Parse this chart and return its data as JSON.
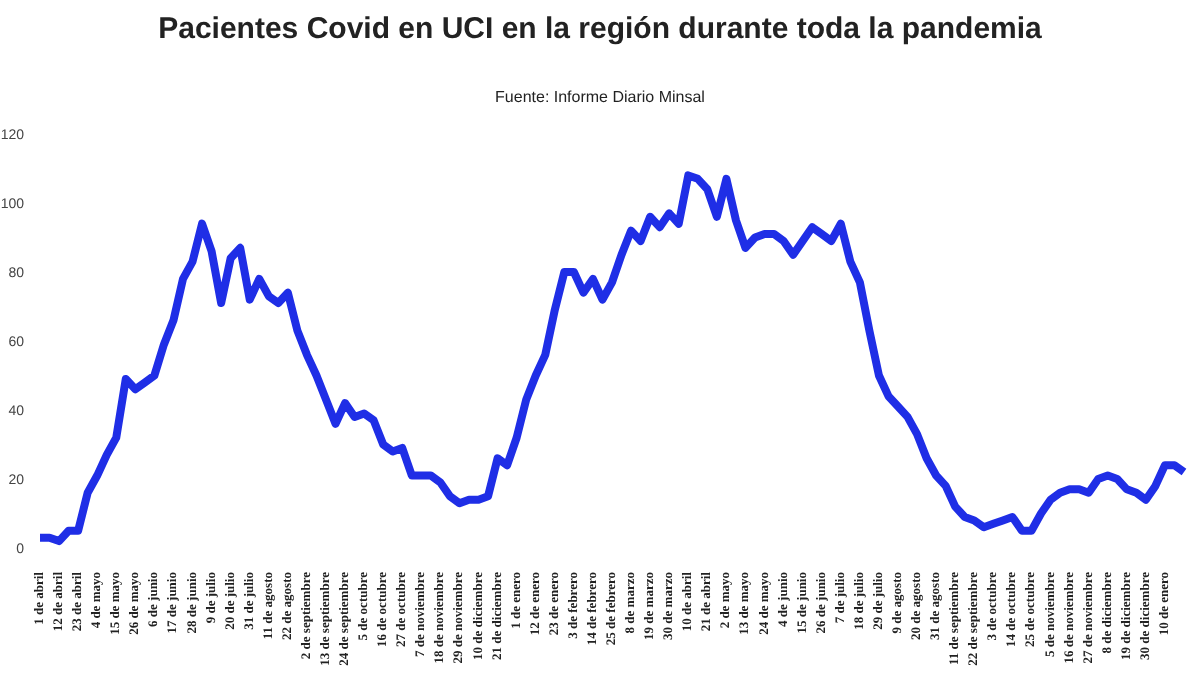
{
  "chart_data": {
    "type": "line",
    "title": "Pacientes Covid en UCI en la región durante toda la pandemia",
    "subtitle": "Fuente: Informe Diario Minsal",
    "categories": [
      "1 de abril",
      null,
      "12 de abril",
      null,
      "23 de abril",
      null,
      "4 de mayo",
      null,
      "15 de mayo",
      null,
      "26 de mayo",
      null,
      "6 de junio",
      null,
      "17 de junio",
      null,
      "28 de junio",
      null,
      "9 de julio",
      null,
      "20 de julio",
      null,
      "31 de julio",
      null,
      "11 de agosto",
      null,
      "22 de agosto",
      null,
      "2 de septiembre",
      null,
      "13 de septiembre",
      null,
      "24 de septiembre",
      null,
      "5 de octubre",
      null,
      "16 de octubre",
      null,
      "27 de octubre",
      null,
      "7 de noviembre",
      null,
      "18 de noviembre",
      null,
      "29 de noviembre",
      null,
      "10 de diciembre",
      null,
      "21 de diciembre",
      null,
      "1 de enero",
      null,
      "12 de enero",
      null,
      "23 de enero",
      null,
      "3 de febrero",
      null,
      "14 de febrero",
      null,
      "25 de febrero",
      null,
      "8 de marzo",
      null,
      "19 de marzo",
      null,
      "30 de marzo",
      null,
      "10 de abril",
      null,
      "21 de abril",
      null,
      "2 de mayo",
      null,
      "13 de mayo",
      null,
      "24 de mayo",
      null,
      "4 de junio",
      null,
      "15 de junio",
      null,
      "26 de junio",
      null,
      "7 de julio",
      null,
      "18 de julio",
      null,
      "29 de julio",
      null,
      "9 de agosto",
      null,
      "20 de agosto",
      null,
      "31 de agosto",
      null,
      "11 de septiembre",
      null,
      "22 de septiembre",
      null,
      "3 de octubre",
      null,
      "14 de octubre",
      null,
      "25 de octubre",
      null,
      "5 de noviembre",
      null,
      "16 de noviembre",
      null,
      "27 de noviembre",
      null,
      "8 de diciembre",
      null,
      "19 de diciembre",
      null,
      "30 de diciembre",
      null,
      "10 de enero",
      null,
      null
    ],
    "series": [
      {
        "color": "#1f2ee6",
        "values": [
          3,
          3,
          2,
          5,
          5,
          16,
          21,
          27,
          32,
          49,
          46,
          48,
          50,
          59,
          66,
          78,
          83,
          94,
          86,
          71,
          84,
          87,
          72,
          78,
          73,
          71,
          74,
          63,
          56,
          50,
          43,
          36,
          42,
          38,
          39,
          37,
          30,
          28,
          29,
          21,
          21,
          21,
          19,
          15,
          13,
          14,
          14,
          15,
          26,
          24,
          32,
          43,
          50,
          56,
          69,
          80,
          80,
          74,
          78,
          72,
          77,
          85,
          92,
          89,
          96,
          93,
          97,
          94,
          108,
          107,
          104,
          96,
          107,
          95,
          87,
          90,
          91,
          91,
          89,
          85,
          89,
          93,
          91,
          89,
          94,
          83,
          77,
          63,
          50,
          44,
          41,
          38,
          33,
          26,
          21,
          18,
          12,
          9,
          8,
          6,
          7,
          8,
          9,
          5,
          5,
          10,
          14,
          16,
          17,
          17,
          16,
          20,
          21,
          20,
          17,
          16,
          14,
          18,
          24,
          24,
          22
        ]
      }
    ],
    "ylim": [
      0,
      120
    ],
    "yticks": [
      0,
      20,
      40,
      60,
      80,
      100,
      120
    ],
    "grid": false,
    "legend": false,
    "marker": "none",
    "line_style": "solid"
  }
}
